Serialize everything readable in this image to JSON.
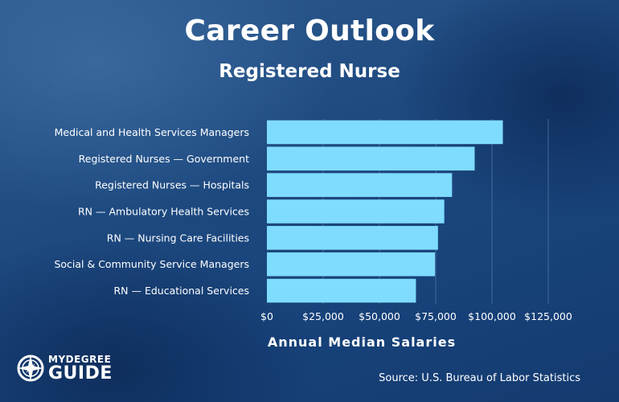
{
  "header": {
    "title": "Career Outlook",
    "subtitle": "Registered Nurse"
  },
  "footer": {
    "source": "Source: U.S. Bureau of Labor Statistics",
    "logo_line1": "MYDEGREE",
    "logo_line2": "GUIDE",
    "logo_icon": "compass-icon"
  },
  "colors": {
    "bar": "#7fdcff",
    "text": "#ffffff",
    "grid": "#5f88b5"
  },
  "chart_data": {
    "type": "bar",
    "orientation": "horizontal",
    "title": "Career Outlook",
    "subtitle": "Registered Nurse",
    "xlabel": "Annual Median Salaries",
    "ylabel": "",
    "categories": [
      "Medical and Health Services Managers",
      "Registered Nurses — Government",
      "Registered Nurses — Hospitals",
      "RN — Ambulatory Health Services",
      "RN — Nursing Care Facilities",
      "Social & Community Service Managers",
      "RN — Educational Services"
    ],
    "values": [
      104830,
      92310,
      82260,
      78800,
      76010,
      74690,
      66220
    ],
    "xlim": [
      0,
      125000
    ],
    "ticks": [
      0,
      25000,
      50000,
      75000,
      100000,
      125000
    ],
    "tick_labels": [
      "$0",
      "$25,000",
      "$50,000",
      "$75,000",
      "$100,000",
      "$125,000"
    ],
    "grid": true,
    "legend": "none"
  }
}
